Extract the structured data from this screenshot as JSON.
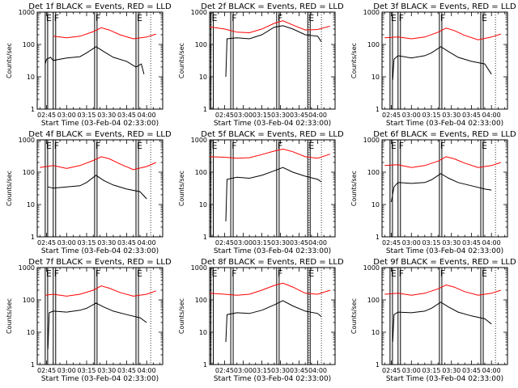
{
  "chart_data": [
    {
      "type": "line",
      "title": "Det 1f BLACK = Events, RED = LLD",
      "xlabel": "Start Time (03-Feb-04 02:33:00)",
      "ylabel": "Counts/sec",
      "yscale": "log",
      "ylim": [
        1,
        1000
      ],
      "yticks": [
        "1",
        "10",
        "100",
        "1000"
      ],
      "xlim": [
        "02:38",
        "04:12"
      ],
      "xticks": [
        "02:45",
        "03:00",
        "03:15",
        "03:30",
        "03:45",
        "04:00"
      ],
      "grid": false,
      "markers": [
        {
          "label": "E",
          "time": "02:44"
        },
        {
          "label": "F",
          "time": "02:50"
        },
        {
          "label": "F",
          "time": "03:21"
        },
        {
          "label": "E",
          "time": "03:52"
        }
      ],
      "dotted_lines": [
        "03:52",
        "04:03"
      ],
      "series": [
        {
          "color": "#ff0000",
          "x": [
            "02:50",
            "03:00",
            "03:10",
            "03:20",
            "03:26",
            "03:32",
            "03:40",
            "03:50",
            "04:00",
            "04:07"
          ],
          "y": [
            180,
            160,
            180,
            250,
            330,
            280,
            200,
            150,
            170,
            210
          ]
        },
        {
          "color": "#000000",
          "x": [
            "02:44",
            "02:45",
            "02:48",
            "02:50",
            "03:00",
            "03:10",
            "03:15",
            "03:22",
            "03:28",
            "03:35",
            "03:45",
            "03:52",
            "03:56",
            "03:58"
          ],
          "y": [
            25,
            35,
            40,
            32,
            38,
            42,
            55,
            85,
            60,
            40,
            30,
            20,
            25,
            12
          ]
        }
      ]
    },
    {
      "type": "line",
      "title": "Det 2f BLACK = Events, RED = LLD",
      "xlabel": "Start Time (03-Feb-04 02:33:00)",
      "ylabel": "Counts/sec",
      "yscale": "log",
      "ylim": [
        1,
        1000
      ],
      "yticks": [
        "1",
        "10",
        "100",
        "1000"
      ],
      "xlim": [
        "02:33",
        "04:14"
      ],
      "xticks": [
        "02:45",
        "03:00",
        "03:15",
        "03:30",
        "03:45",
        "04:00"
      ],
      "grid": false,
      "markers": [
        {
          "label": "E",
          "time": "02:34"
        },
        {
          "label": "F",
          "time": "02:50"
        },
        {
          "label": "F",
          "time": "03:27"
        },
        {
          "label": "E",
          "time": "03:52"
        }
      ],
      "dotted_lines": [
        "03:53",
        "04:03"
      ],
      "series": [
        {
          "color": "#ff0000",
          "x": [
            "02:33",
            "02:45",
            "02:55",
            "03:05",
            "03:15",
            "03:25",
            "03:32",
            "03:40",
            "03:50",
            "04:00",
            "04:10"
          ],
          "y": [
            350,
            300,
            240,
            230,
            300,
            450,
            540,
            400,
            280,
            290,
            370
          ]
        },
        {
          "color": "#000000",
          "x": [
            "02:46",
            "02:47",
            "02:55",
            "03:05",
            "03:15",
            "03:25",
            "03:32",
            "03:40",
            "03:50",
            "04:00",
            "04:03"
          ],
          "y": [
            10,
            150,
            160,
            150,
            200,
            340,
            380,
            300,
            200,
            180,
            120
          ]
        }
      ]
    },
    {
      "type": "line",
      "title": "Det 3f BLACK = Events, RED = LLD",
      "xlabel": "Start Time (03-Feb-04 02:33:00)",
      "ylabel": "Counts/sec",
      "yscale": "log",
      "ylim": [
        1,
        1000
      ],
      "yticks": [
        "1",
        "10",
        "100",
        "1000"
      ],
      "xlim": [
        "02:38",
        "04:12"
      ],
      "xticks": [
        "02:45",
        "03:00",
        "03:15",
        "03:30",
        "03:45",
        "04:00"
      ],
      "grid": false,
      "markers": [
        {
          "label": "E",
          "time": "02:44"
        },
        {
          "label": "F",
          "time": "02:50"
        },
        {
          "label": "F",
          "time": "03:21"
        },
        {
          "label": "E",
          "time": "03:52"
        }
      ],
      "dotted_lines": [
        "03:52",
        "04:03"
      ],
      "series": [
        {
          "color": "#ff0000",
          "x": [
            "02:40",
            "02:50",
            "03:00",
            "03:10",
            "03:20",
            "03:26",
            "03:32",
            "03:40",
            "03:50",
            "04:00",
            "04:07"
          ],
          "y": [
            160,
            170,
            150,
            170,
            240,
            320,
            270,
            190,
            140,
            170,
            210
          ]
        },
        {
          "color": "#000000",
          "x": [
            "02:46",
            "02:47",
            "02:50",
            "03:00",
            "03:10",
            "03:15",
            "03:22",
            "03:28",
            "03:35",
            "03:45",
            "03:55",
            "04:00"
          ],
          "y": [
            8,
            35,
            45,
            38,
            45,
            55,
            85,
            60,
            40,
            30,
            25,
            12
          ]
        }
      ]
    },
    {
      "type": "line",
      "title": "Det 4f BLACK = Events, RED = LLD",
      "xlabel": "Start Time (03-Feb-04 02:33:00)",
      "ylabel": "Counts/sec",
      "yscale": "log",
      "ylim": [
        1,
        1000
      ],
      "yticks": [
        "1",
        "10",
        "100",
        "1000"
      ],
      "xlim": [
        "02:38",
        "04:12"
      ],
      "xticks": [
        "02:45",
        "03:00",
        "03:15",
        "03:30",
        "03:45",
        "04:00"
      ],
      "grid": false,
      "markers": [
        {
          "label": "E",
          "time": "02:44"
        },
        {
          "label": "F",
          "time": "02:50"
        },
        {
          "label": "F",
          "time": "03:21"
        },
        {
          "label": "E",
          "time": "03:52"
        }
      ],
      "dotted_lines": [
        "03:52",
        "04:03"
      ],
      "series": [
        {
          "color": "#ff0000",
          "x": [
            "02:40",
            "02:50",
            "03:00",
            "03:10",
            "03:20",
            "03:26",
            "03:32",
            "03:40",
            "03:50",
            "04:00",
            "04:07"
          ],
          "y": [
            140,
            160,
            130,
            160,
            230,
            300,
            260,
            180,
            120,
            150,
            200
          ]
        },
        {
          "color": "#000000",
          "x": [
            "02:46",
            "02:50",
            "03:00",
            "03:10",
            "03:15",
            "03:22",
            "03:28",
            "03:35",
            "03:45",
            "03:55",
            "04:00"
          ],
          "y": [
            35,
            32,
            35,
            38,
            48,
            80,
            55,
            40,
            30,
            25,
            15
          ]
        }
      ]
    },
    {
      "type": "line",
      "title": "Det 5f BLACK = Events, RED = LLD",
      "xlabel": "Start Time (03-Feb-04 02:33:00)",
      "ylabel": "Counts/sec",
      "yscale": "log",
      "ylim": [
        1,
        1000
      ],
      "yticks": [
        "1",
        "10",
        "100",
        "1000"
      ],
      "xlim": [
        "02:33",
        "04:14"
      ],
      "xticks": [
        "02:45",
        "03:00",
        "03:15",
        "03:30",
        "03:45",
        "04:00"
      ],
      "grid": false,
      "markers": [
        {
          "label": "E",
          "time": "02:34"
        },
        {
          "label": "F",
          "time": "02:50"
        },
        {
          "label": "F",
          "time": "03:27"
        },
        {
          "label": "E",
          "time": "03:52"
        }
      ],
      "dotted_lines": [
        "03:53",
        "04:03"
      ],
      "series": [
        {
          "color": "#ff0000",
          "x": [
            "02:33",
            "02:45",
            "02:55",
            "03:05",
            "03:15",
            "03:25",
            "03:32",
            "03:40",
            "03:50",
            "04:00",
            "04:10"
          ],
          "y": [
            300,
            290,
            270,
            280,
            350,
            450,
            520,
            430,
            300,
            270,
            360
          ]
        },
        {
          "color": "#000000",
          "x": [
            "02:46",
            "02:47",
            "02:55",
            "03:05",
            "03:15",
            "03:25",
            "03:32",
            "03:40",
            "03:50",
            "04:00",
            "04:03"
          ],
          "y": [
            3,
            60,
            70,
            65,
            80,
            110,
            140,
            100,
            75,
            60,
            50
          ]
        }
      ]
    },
    {
      "type": "line",
      "title": "Det 6f BLACK = Events, RED = LLD",
      "xlabel": "Start Time (03-Feb-04 02:33:00)",
      "ylabel": "Counts/sec",
      "yscale": "log",
      "ylim": [
        1,
        1000
      ],
      "yticks": [
        "1",
        "10",
        "100",
        "1000"
      ],
      "xlim": [
        "02:38",
        "04:12"
      ],
      "xticks": [
        "02:45",
        "03:00",
        "03:15",
        "03:30",
        "03:45",
        "04:00"
      ],
      "grid": false,
      "markers": [
        {
          "label": "E",
          "time": "02:44"
        },
        {
          "label": "F",
          "time": "02:50"
        },
        {
          "label": "F",
          "time": "03:21"
        },
        {
          "label": "E",
          "time": "03:52"
        }
      ],
      "dotted_lines": [
        "03:52",
        "04:03"
      ],
      "series": [
        {
          "color": "#ff0000",
          "x": [
            "02:40",
            "02:50",
            "03:00",
            "03:10",
            "03:20",
            "03:26",
            "03:32",
            "03:40",
            "03:50",
            "04:00",
            "04:07"
          ],
          "y": [
            160,
            170,
            140,
            160,
            220,
            300,
            260,
            190,
            140,
            160,
            200
          ]
        },
        {
          "color": "#000000",
          "x": [
            "02:45",
            "02:47",
            "02:50",
            "03:00",
            "03:10",
            "03:15",
            "03:22",
            "03:28",
            "03:35",
            "03:45",
            "03:55",
            "04:00"
          ],
          "y": [
            12,
            35,
            48,
            45,
            48,
            58,
            90,
            65,
            48,
            38,
            30,
            28
          ]
        }
      ]
    },
    {
      "type": "line",
      "title": "Det 7f BLACK = Events, RED = LLD",
      "xlabel": "Start Time (03-Feb-04 02:33:00)",
      "ylabel": "Counts/sec",
      "yscale": "log",
      "ylim": [
        1,
        1000
      ],
      "yticks": [
        "1",
        "10",
        "100",
        "1000"
      ],
      "xlim": [
        "02:38",
        "04:12"
      ],
      "xticks": [
        "02:45",
        "03:00",
        "03:15",
        "03:30",
        "03:45",
        "04:00"
      ],
      "grid": false,
      "markers": [
        {
          "label": "E",
          "time": "02:44"
        },
        {
          "label": "F",
          "time": "02:50"
        },
        {
          "label": "F",
          "time": "03:21"
        },
        {
          "label": "E",
          "time": "03:52"
        }
      ],
      "dotted_lines": [
        "03:52",
        "04:03"
      ],
      "series": [
        {
          "color": "#ff0000",
          "x": [
            "02:44",
            "02:50",
            "03:00",
            "03:10",
            "03:20",
            "03:26",
            "03:32",
            "03:40",
            "03:50",
            "04:00",
            "04:07"
          ],
          "y": [
            140,
            150,
            130,
            150,
            200,
            270,
            230,
            170,
            130,
            150,
            190
          ]
        },
        {
          "color": "#000000",
          "x": [
            "02:46",
            "02:47",
            "02:50",
            "03:00",
            "03:10",
            "03:15",
            "03:22",
            "03:28",
            "03:35",
            "03:45",
            "03:55",
            "04:00"
          ],
          "y": [
            3,
            40,
            45,
            42,
            48,
            55,
            80,
            60,
            45,
            35,
            28,
            20
          ]
        }
      ]
    },
    {
      "type": "line",
      "title": "Det 8f BLACK = Events, RED = LLD",
      "xlabel": "Start Time (03-Feb-04 02:33:00)",
      "ylabel": "Counts/sec",
      "yscale": "log",
      "ylim": [
        1,
        1000
      ],
      "yticks": [
        "1",
        "10",
        "100",
        "1000"
      ],
      "xlim": [
        "02:33",
        "04:14"
      ],
      "xticks": [
        "02:45",
        "03:00",
        "03:15",
        "03:30",
        "03:45",
        "04:00"
      ],
      "grid": false,
      "markers": [
        {
          "label": "E",
          "time": "02:34"
        },
        {
          "label": "F",
          "time": "02:50"
        },
        {
          "label": "F",
          "time": "03:27"
        },
        {
          "label": "E",
          "time": "03:52"
        }
      ],
      "dotted_lines": [
        "03:53",
        "04:03"
      ],
      "series": [
        {
          "color": "#ff0000",
          "x": [
            "02:33",
            "02:45",
            "02:55",
            "03:05",
            "03:15",
            "03:25",
            "03:32",
            "03:40",
            "03:50",
            "04:00",
            "04:10"
          ],
          "y": [
            160,
            150,
            140,
            150,
            200,
            280,
            330,
            250,
            160,
            150,
            200
          ]
        },
        {
          "color": "#000000",
          "x": [
            "02:46",
            "02:47",
            "02:55",
            "03:05",
            "03:15",
            "03:25",
            "03:32",
            "03:40",
            "03:50",
            "04:00",
            "04:03"
          ],
          "y": [
            5,
            35,
            40,
            38,
            48,
            70,
            95,
            65,
            45,
            38,
            30
          ]
        }
      ]
    },
    {
      "type": "line",
      "title": "Det 9f BLACK = Events, RED = LLD",
      "xlabel": "Start Time (03-Feb-04 02:33:00)",
      "ylabel": "Counts/sec",
      "yscale": "log",
      "ylim": [
        1,
        1000
      ],
      "yticks": [
        "1",
        "10",
        "100",
        "1000"
      ],
      "xlim": [
        "02:38",
        "04:12"
      ],
      "xticks": [
        "02:45",
        "03:00",
        "03:15",
        "03:30",
        "03:45",
        "04:00"
      ],
      "grid": false,
      "markers": [
        {
          "label": "E",
          "time": "02:44"
        },
        {
          "label": "F",
          "time": "02:50"
        },
        {
          "label": "F",
          "time": "03:21"
        },
        {
          "label": "E",
          "time": "03:52"
        }
      ],
      "dotted_lines": [
        "03:52",
        "04:03"
      ],
      "series": [
        {
          "color": "#ff0000",
          "x": [
            "02:40",
            "02:50",
            "03:00",
            "03:10",
            "03:20",
            "03:26",
            "03:32",
            "03:40",
            "03:50",
            "04:00",
            "04:07"
          ],
          "y": [
            150,
            160,
            140,
            160,
            220,
            290,
            250,
            180,
            140,
            160,
            200
          ]
        },
        {
          "color": "#000000",
          "x": [
            "02:46",
            "02:47",
            "02:50",
            "03:00",
            "03:10",
            "03:15",
            "03:22",
            "03:28",
            "03:35",
            "03:45",
            "03:55",
            "04:00"
          ],
          "y": [
            5,
            35,
            42,
            40,
            45,
            55,
            85,
            60,
            42,
            32,
            26,
            18
          ]
        }
      ]
    }
  ]
}
